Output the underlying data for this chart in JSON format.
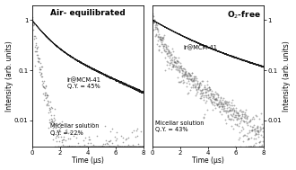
{
  "panel1_title": "Air- equilibrated",
  "panel2_title": "O$_2$-free",
  "xlabel": "Time (μs)",
  "ylabel_left": "Intensity (arb. units)",
  "ylabel_right": "Intensity (arb. units)",
  "xlim": [
    0,
    8
  ],
  "ylim_log": [
    0.003,
    2.0
  ],
  "panel1_annot1": "Ir@MCM-41\nQ.Y. = 45%",
  "panel1_annot2": "Micellar solution\nQ.Y. = 22%",
  "panel2_annot1": "Ir@MCM-41",
  "panel2_annot2": "Micellar solution\nQ.Y. = 43%",
  "bg_color": "#ffffff",
  "line_color": "#000000",
  "scatter_color": "#888888",
  "fontsize_title": 6.5,
  "fontsize_label": 5.5,
  "fontsize_annot": 4.8,
  "fontsize_tick": 5.0
}
